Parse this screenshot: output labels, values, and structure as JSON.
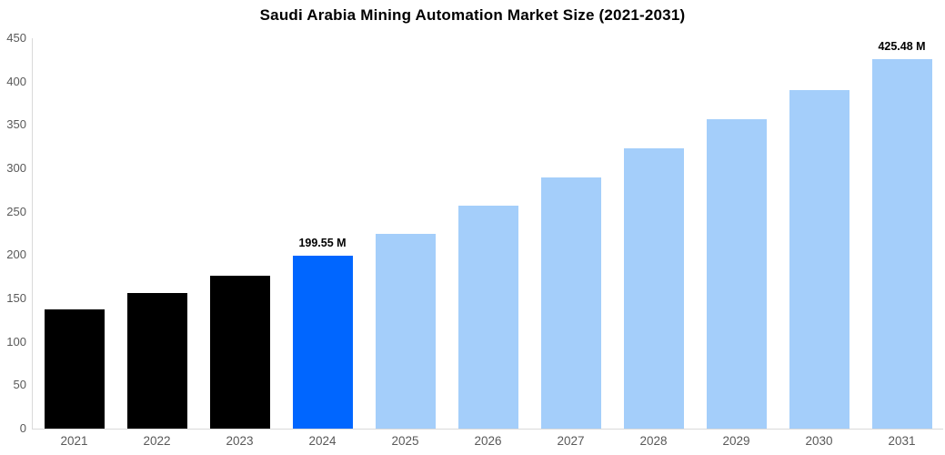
{
  "title": "Saudi Arabia Mining Automation Market Size (2021-2031)",
  "chart_data": {
    "type": "bar",
    "title": "Saudi Arabia Mining Automation Market Size (2021-2031)",
    "categories": [
      "2021",
      "2022",
      "2023",
      "2024",
      "2025",
      "2026",
      "2027",
      "2028",
      "2029",
      "2030",
      "2031"
    ],
    "values": [
      137,
      156,
      176,
      199.55,
      225,
      257,
      290,
      323,
      357,
      390,
      425.48
    ],
    "value_labels": [
      "",
      "",
      "",
      "199.55 M",
      "",
      "",
      "",
      "",
      "",
      "",
      "425.48 M"
    ],
    "bar_colors": [
      "#000000",
      "#000000",
      "#000000",
      "#0066FF",
      "#A4CEFA",
      "#A4CEFA",
      "#A4CEFA",
      "#A4CEFA",
      "#A4CEFA",
      "#A4CEFA",
      "#A4CEFA"
    ],
    "series_roles": [
      "historical",
      "historical",
      "historical",
      "base-year",
      "forecast",
      "forecast",
      "forecast",
      "forecast",
      "forecast",
      "forecast",
      "forecast"
    ],
    "xlabel": "",
    "ylabel": "",
    "ylim": [
      0,
      450
    ],
    "yticks": [
      0,
      50,
      100,
      150,
      200,
      250,
      300,
      350,
      400,
      450
    ],
    "grid": false,
    "legend": false,
    "unit_suffix": "M"
  },
  "style": {
    "historical_color": "#000000",
    "base_year_color": "#0066FF",
    "forecast_color": "#A4CEFA",
    "axis_line_color": "#D9D9D9",
    "tick_label_color": "#595959",
    "title_color": "#000000",
    "background": "#FFFFFF"
  }
}
